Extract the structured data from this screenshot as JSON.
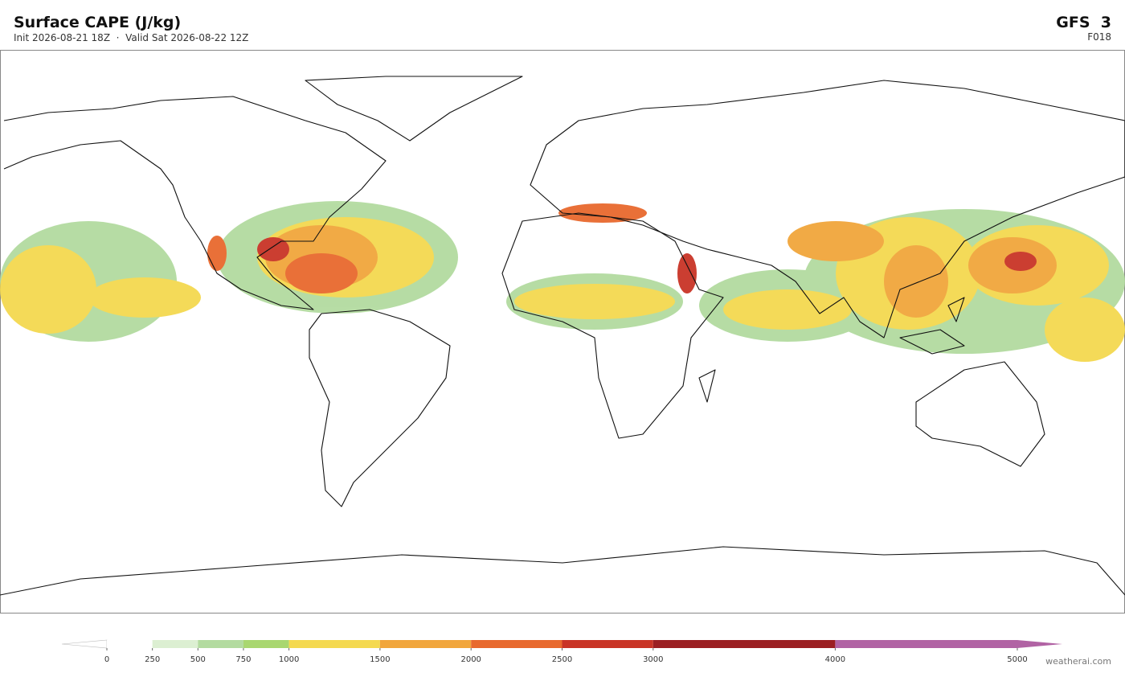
{
  "header": {
    "title": "Surface CAPE  (J/kg)",
    "subtitle": "Init 2026-08-21 18Z  ·  Valid Sat 2026-08-22 12Z",
    "model": "GFS  3",
    "step": "F018"
  },
  "colorbar": {
    "ticks": [
      0,
      250,
      500,
      750,
      1000,
      1500,
      2000,
      2500,
      3000,
      4000,
      5000
    ],
    "colors": [
      "#ffffff",
      "#dcefd2",
      "#b3dba0",
      "#a9d770",
      "#f4d950",
      "#f1a63c",
      "#e8692e",
      "#c93426",
      "#9b1f22",
      "#b163a4"
    ],
    "over_color": "#b163a4"
  },
  "footer": {
    "watermark": "weatherai.com"
  }
}
